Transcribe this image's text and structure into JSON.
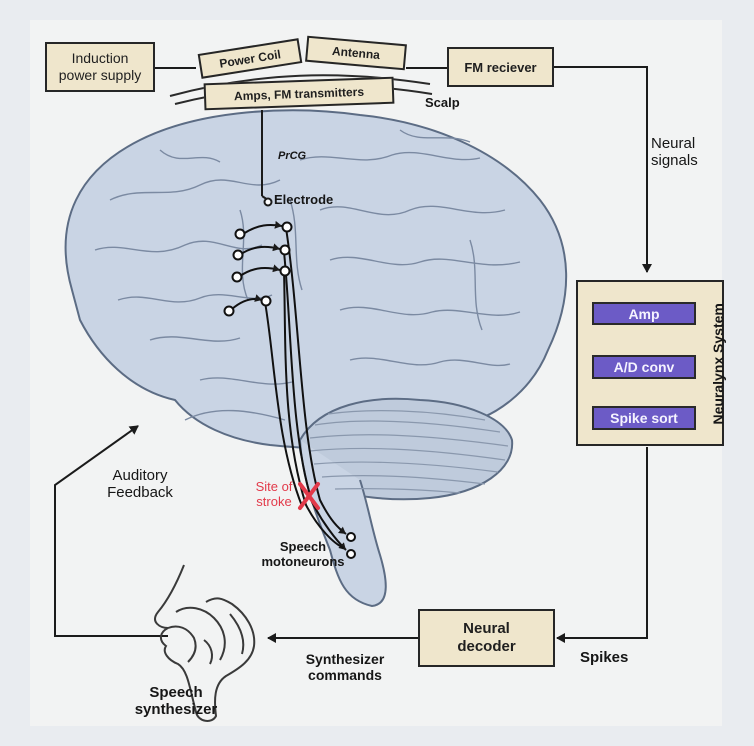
{
  "labels": {
    "induction_power_supply": "Induction power supply",
    "power_coil": "Power Coil",
    "antenna": "Antenna",
    "amps_fm_transmitters": "Amps, FM transmitters",
    "scalp": "Scalp",
    "fm_receiver": "FM reciever",
    "neural_signals": "Neural signals",
    "prcg": "PrCG",
    "electrode": "Electrode",
    "neuralynx_system": "Neuralynx System",
    "amp": "Amp",
    "ad_conv": "A/D conv",
    "spike_sort": "Spike sort",
    "auditory_feedback": "Auditory Feedback",
    "site_of_stroke": "Site of stroke",
    "speech_motoneurons": "Speech motoneurons",
    "neural_decoder": "Neural decoder",
    "spikes": "Spikes",
    "synthesizer_commands": "Synthesizer commands",
    "speech_synthesizer": "Speech synthesizer"
  },
  "colors": {
    "box_fill": "#efe6cc",
    "dsp_fill": "#6c5bc6",
    "brain_fill": "#c9d4e4",
    "stroke_mark": "#e23a4a",
    "line": "#1b1b1b"
  }
}
